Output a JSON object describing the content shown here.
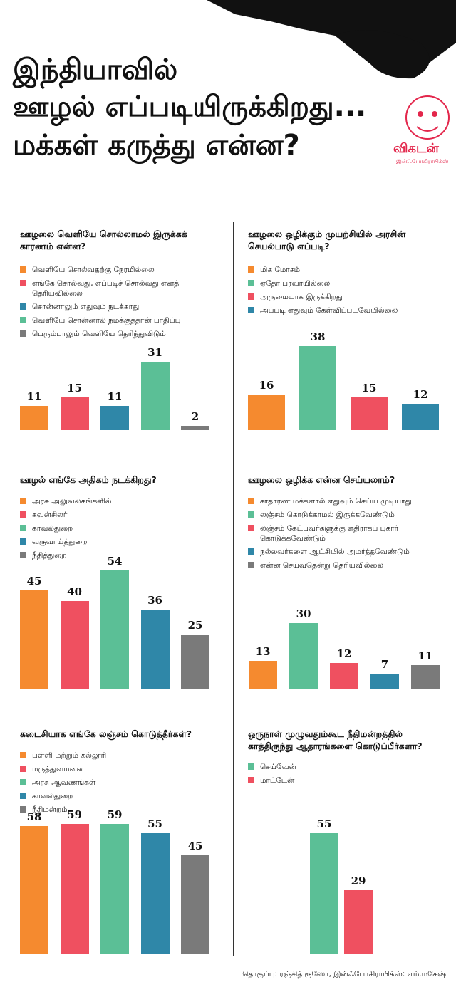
{
  "header": {
    "title": [
      "இந்தியாவில்",
      "ஊழல் எப்படியிருக்கிறது...",
      "மக்கள் கருத்து என்ன?"
    ]
  },
  "logo": {
    "name": "விகடன்",
    "subtitle": "இன்ஃபோகிராபிக்ஸ்"
  },
  "chart_data": [
    {
      "type": "bar",
      "title": "ஊழலை வெளியே சொல்லாமல் இருக்கக் காரணம் என்ன?",
      "categories": [
        "வெளியே சொல்வதற்கு நேரமில்லை",
        "எங்கே சொல்வது, எப்படிச் சொல்வது எனத் தெரியவில்லை",
        "சொன்னாலும் எதுவும் நடக்காது",
        "வெளியே சொன்னால் நமக்குத்தான் பாதிப்பு",
        "பெரும்பாலும் வெளியே தெரிந்துவிடும்"
      ],
      "values": [
        11,
        15,
        11,
        31,
        2
      ],
      "colors": [
        "#f58a2f",
        "#ef5060",
        "#2f87a8",
        "#5bbf96",
        "#7a7a7a"
      ]
    },
    {
      "type": "bar",
      "title": "ஊழலை ஒழிக்கும் முயற்சியில் அரசின் செயல்பாடு எப்படி?",
      "categories": [
        "மிக மோசம்",
        "ஏதோ பரவாயில்லை",
        "அருமையாக இருக்கிறது",
        "அப்படி எதுவும் கேள்விப்படவேயில்லை"
      ],
      "values": [
        16,
        38,
        15,
        12
      ],
      "colors": [
        "#f58a2f",
        "#5bbf96",
        "#ef5060",
        "#2f87a8"
      ]
    },
    {
      "type": "bar",
      "title": "ஊழல் எங்கே அதிகம் நடக்கிறது?",
      "categories": [
        "அரசு அலுவலகங்களில்",
        "கவுன்சிலர்",
        "காவல்துறை",
        "வருவாய்த்துறை",
        "நீதித்துறை"
      ],
      "values": [
        45,
        40,
        54,
        36,
        25
      ],
      "colors": [
        "#f58a2f",
        "#ef5060",
        "#5bbf96",
        "#2f87a8",
        "#7a7a7a"
      ]
    },
    {
      "type": "bar",
      "title": "ஊழலை ஒழிக்க என்ன செய்யலாம்?",
      "categories": [
        "சாதாரண மக்களால் எதுவும் செய்ய முடியாது",
        "லஞ்சம் கொடுக்காமல் இருக்கவேண்டும்",
        "லஞ்சம் கேட்பவர்களுக்கு எதிராகப் புகார் கொடுக்கவேண்டும்",
        "நல்லவர்களை ஆட்சியில் அமர்த்தவேண்டும்",
        "என்ன செய்வதென்று தெரியவில்லை"
      ],
      "values": [
        13,
        30,
        12,
        7,
        11
      ],
      "colors": [
        "#f58a2f",
        "#5bbf96",
        "#ef5060",
        "#2f87a8",
        "#7a7a7a"
      ]
    },
    {
      "type": "bar",
      "title": "கடைசியாக எங்கே லஞ்சம் கொடுத்தீர்கள்?",
      "categories": [
        "பள்ளி மற்றும் கல்லூரி",
        "மருத்துவமனை",
        "அரசு ஆவணங்கள்",
        "காவல்துறை",
        "நீதிமன்றம்"
      ],
      "values": [
        58,
        59,
        59,
        55,
        45
      ],
      "colors": [
        "#f58a2f",
        "#ef5060",
        "#5bbf96",
        "#2f87a8",
        "#7a7a7a"
      ]
    },
    {
      "type": "bar",
      "title": "ஒருநாள் முழுவதும்கூட நீதிமன்றத்தில் காத்திருந்து ஆதாரங்களை கொடுப்பீர்களா?",
      "categories": [
        "செய்வேன்",
        "மாட்டேன்"
      ],
      "values": [
        55,
        29
      ],
      "colors": [
        "#5bbf96",
        "#ef5060"
      ]
    }
  ],
  "footer": "தொகுப்பு: ரஞ்சித் ரூஸோ, இன்ஃபோகிராபிக்ஸ்: எம்.மகேஷ்"
}
